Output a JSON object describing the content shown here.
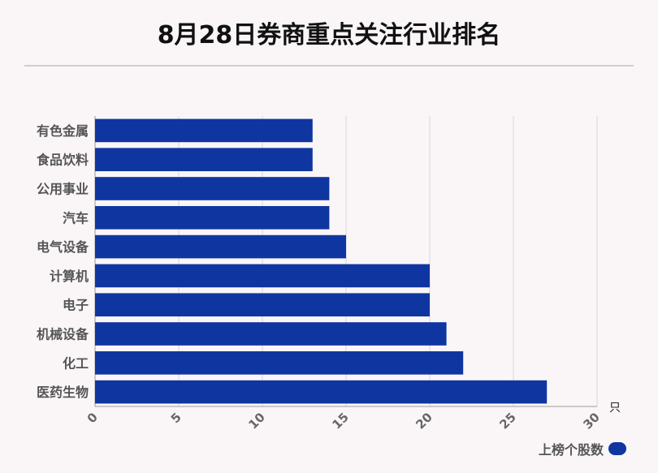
{
  "title": "8月28日券商重点关注行业排名",
  "colors": {
    "bar": "#0f36a0",
    "grid": "#d7d7d7",
    "axis": "#999999"
  },
  "chart_data": {
    "type": "bar",
    "orientation": "horizontal",
    "categories": [
      "有色金属",
      "食品饮料",
      "公用事业",
      "汽车",
      "电气设备",
      "计算机",
      "电子",
      "机械设备",
      "化工",
      "医药生物"
    ],
    "series": [
      {
        "name": "上榜个股数",
        "values": [
          13,
          13,
          14,
          14,
          15,
          20,
          20,
          21,
          22,
          27
        ]
      }
    ],
    "xlim": [
      0,
      30
    ],
    "xticks": [
      "0",
      "5",
      "10",
      "15",
      "20",
      "25",
      "30"
    ],
    "unit": "只",
    "grid": true,
    "legend": "bottom-right"
  }
}
